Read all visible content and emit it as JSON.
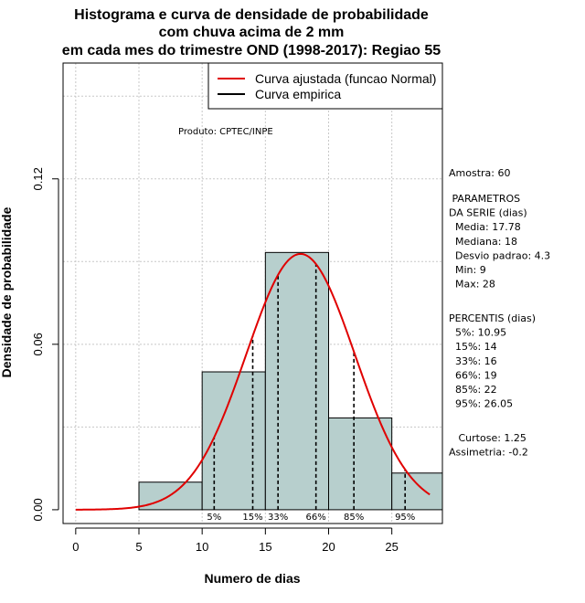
{
  "chart_data": {
    "type": "bar",
    "title_lines": [
      "Histograma e curva de densidade de probabilidade",
      "com chuva acima de 2 mm",
      "em cada mes do trimestre OND (1998-2017): Regiao 55"
    ],
    "xlabel": "Numero de dias",
    "ylabel": "Densidade de probabilidade",
    "xlim": [
      -1,
      29
    ],
    "ylim": [
      -0.005,
      0.162
    ],
    "x_ticks": [
      0,
      5,
      10,
      15,
      20,
      25
    ],
    "y_ticks": [
      0.0,
      0.06,
      0.12
    ],
    "y_tick_labels": [
      "0.00",
      "0.06",
      "0.12"
    ],
    "x_grid": [
      0,
      5,
      10,
      15,
      20,
      25
    ],
    "y_grid": [
      0.03,
      0.06,
      0.09,
      0.12,
      0.15
    ],
    "bars": [
      {
        "x0": 5,
        "x1": 10,
        "density": 0.01
      },
      {
        "x0": 10,
        "x1": 15,
        "density": 0.05
      },
      {
        "x0": 15,
        "x1": 20,
        "density": 0.0933
      },
      {
        "x0": 20,
        "x1": 25,
        "density": 0.0333
      },
      {
        "x0": 25,
        "x1": 30,
        "density": 0.0133
      }
    ],
    "bar_color": "#b7cfcd",
    "curve_color": "#e00000",
    "normal_fit": {
      "mean": 17.78,
      "sd": 4.3,
      "x_from": 0,
      "x_to": 28
    },
    "percentile_lines": [
      {
        "label": "5%",
        "x": 10.95
      },
      {
        "label": "15%",
        "x": 14
      },
      {
        "label": "33%",
        "x": 16
      },
      {
        "label": "66%",
        "x": 19
      },
      {
        "label": "85%",
        "x": 22
      },
      {
        "label": "95%",
        "x": 26.05
      }
    ],
    "legend": [
      {
        "label": "Curva ajustada (funcao Normal)",
        "color": "#e00000"
      },
      {
        "label": "Curva empirica",
        "color": "#000000"
      }
    ],
    "product_label": "Produto: CPTEC/INPE"
  },
  "stats_panel": {
    "lines_1": [
      "Amostra: 60"
    ],
    "lines_2": [
      " PARAMETROS",
      "DA SERIE (dias)",
      "  Media: 17.78",
      "  Mediana: 18",
      "  Desvio padrao: 4.3",
      "  Min: 9",
      "  Max: 28"
    ],
    "lines_3": [
      "PERCENTIS (dias)",
      "  5%: 10.95",
      "  15%: 14",
      "  33%: 16",
      "  66%: 19",
      "  85%: 22",
      "  95%: 26.05"
    ],
    "lines_4": [
      "   Curtose: 1.25",
      "Assimetria: -0.2"
    ]
  }
}
